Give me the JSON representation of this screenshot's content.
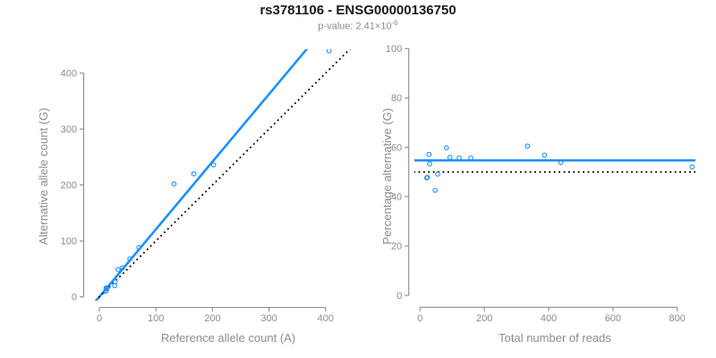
{
  "page": {
    "title": "rs3781106 - ENSG00000136750",
    "p_value_base": "p-value: 2.41×10",
    "p_value_exponent": "-6"
  },
  "colors": {
    "accent_blue": "#1E90FF",
    "reference_black": "#000000",
    "axis_gray": "#8C8C8C",
    "title_black": "#1a1a1a"
  },
  "chart_data": [
    {
      "id": "allele-counts",
      "type": "scatter",
      "title": "",
      "xlabel": "Reference allele count (A)",
      "ylabel": "Alternative allele count (G)",
      "xlim": [
        0,
        440
      ],
      "ylim": [
        0,
        450
      ],
      "xticks": [
        0,
        100,
        200,
        300,
        400
      ],
      "yticks": [
        0,
        100,
        200,
        300,
        400
      ],
      "grid": false,
      "legend": "none",
      "point_color": "#1E90FF",
      "points": [
        [
          11,
          10
        ],
        [
          12,
          11
        ],
        [
          12,
          16
        ],
        [
          14,
          16
        ],
        [
          27,
          20
        ],
        [
          28,
          27
        ],
        [
          33,
          49
        ],
        [
          41,
          52
        ],
        [
          54,
          68
        ],
        [
          70,
          88
        ],
        [
          132,
          202
        ],
        [
          167,
          220
        ],
        [
          202,
          236
        ],
        [
          406,
          440
        ]
      ],
      "lines": [
        {
          "name": "regression-fit",
          "style": "solid",
          "color": "#1E90FF",
          "slope": 1.208,
          "intercept": 0
        },
        {
          "name": "identity-line",
          "style": "dotted",
          "color": "#000000",
          "slope": 1,
          "intercept": 0
        }
      ]
    },
    {
      "id": "percentage-vs-reads",
      "type": "scatter",
      "title": "",
      "xlabel": "Total number of reads",
      "ylabel": "Percentage alternative (G)",
      "xlim": [
        0,
        850
      ],
      "ylim": [
        0,
        100
      ],
      "xticks": [
        0,
        200,
        400,
        600,
        800
      ],
      "yticks": [
        0,
        20,
        40,
        60,
        80,
        100
      ],
      "grid": false,
      "legend": "none",
      "point_color": "#1E90FF",
      "points": [
        [
          21,
          47.6
        ],
        [
          23,
          47.8
        ],
        [
          28,
          57.1
        ],
        [
          30,
          53.3
        ],
        [
          47,
          42.6
        ],
        [
          55,
          49.1
        ],
        [
          82,
          59.8
        ],
        [
          93,
          55.9
        ],
        [
          122,
          55.7
        ],
        [
          158,
          55.7
        ],
        [
          334,
          60.5
        ],
        [
          387,
          56.8
        ],
        [
          438,
          53.9
        ],
        [
          846,
          52.0
        ]
      ],
      "lines": [
        {
          "name": "mean-percentage",
          "style": "solid",
          "color": "#1E90FF",
          "h": 54.7
        },
        {
          "name": "fifty-percent-reference",
          "style": "dotted",
          "color": "#000000",
          "h": 50
        }
      ]
    }
  ]
}
